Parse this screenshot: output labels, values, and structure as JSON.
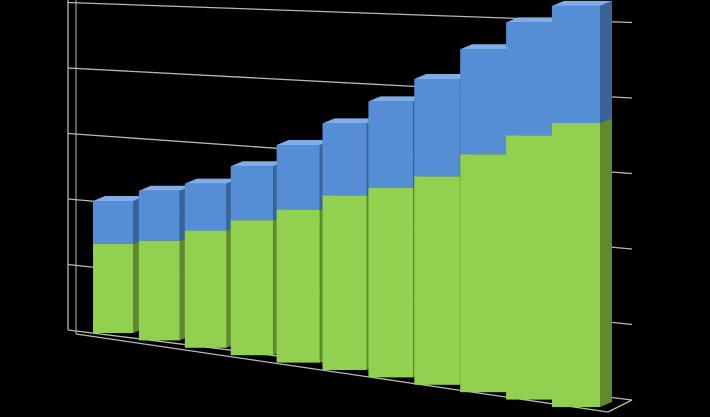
{
  "chart_data": {
    "type": "bar",
    "stacked": true,
    "three_d": true,
    "title": "",
    "xlabel": "",
    "ylabel": "",
    "ylim": [
      0,
      6
    ],
    "y_gridlines": [
      0,
      1,
      2,
      3,
      4,
      5,
      6
    ],
    "grid": true,
    "legend": "none",
    "categories": [
      "",
      "",
      "",
      "",
      "",
      "",
      "",
      "",
      "",
      "",
      ""
    ],
    "series": [
      {
        "color": "#92d050",
        "values": [
          1.35,
          1.5,
          1.75,
          2.0,
          2.25,
          2.55,
          2.75,
          3.0,
          3.4,
          3.75,
          4.0
        ]
      },
      {
        "color": "#558ed5",
        "values": [
          0.65,
          0.75,
          0.7,
          0.8,
          0.95,
          1.05,
          1.25,
          1.4,
          1.5,
          1.6,
          1.65
        ]
      }
    ],
    "colors": {
      "background": "#000000",
      "gridline": "#b8b8b8",
      "series1_side": "#5f8a2e",
      "series1_top": "#b5e27a",
      "series2_side": "#3a6399",
      "series2_top": "#7fadea"
    }
  }
}
